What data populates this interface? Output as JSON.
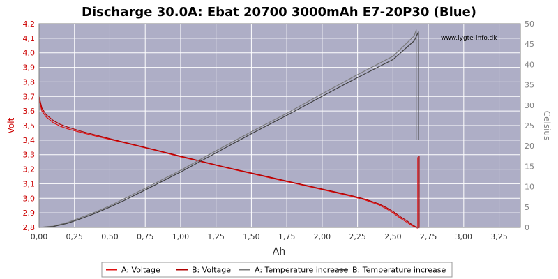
{
  "chart_data": {
    "type": "line",
    "title": "Discharge 30.0A: Ebat 20700 3000mAh E7-20P30 (Blue)",
    "watermark": "www.lygte-info.dk",
    "xlabel": "Ah",
    "ylabel_left": "Volt",
    "ylabel_right": "Celsius",
    "xlim": [
      0,
      3.4
    ],
    "ylim_left": [
      2.8,
      4.2
    ],
    "ylim_right": [
      0,
      50
    ],
    "xticks": [
      "0,00",
      "0,25",
      "0,50",
      "0,75",
      "1,00",
      "1,25",
      "1,50",
      "1,75",
      "2,00",
      "2,25",
      "2,50",
      "2,75",
      "3,00",
      "3,25"
    ],
    "yticks_left": [
      "2,8",
      "2,9",
      "3,0",
      "3,1",
      "3,2",
      "3,3",
      "3,4",
      "3,5",
      "3,6",
      "3,7",
      "3,8",
      "3,9",
      "4,0",
      "4,1",
      "4,2"
    ],
    "yticks_right": [
      "0",
      "5",
      "10",
      "15",
      "20",
      "25",
      "30",
      "35",
      "40",
      "45",
      "50"
    ],
    "grid": true,
    "legend_position": "bottom",
    "colors": {
      "plot_bg": "#aeaec6",
      "grid": "#ffffff",
      "voltage": "#e01010",
      "temperature": "#5a5a5a",
      "left_axis_text": "#cc0000",
      "right_axis_text": "#808080"
    },
    "series": [
      {
        "name": "A: Voltage",
        "axis": "left",
        "color": "#e01010",
        "x": [
          0.0,
          0.02,
          0.05,
          0.1,
          0.15,
          0.2,
          0.25,
          0.3,
          0.4,
          0.5,
          0.6,
          0.7,
          0.8,
          0.9,
          1.0,
          1.1,
          1.2,
          1.3,
          1.4,
          1.5,
          1.6,
          1.7,
          1.8,
          1.9,
          2.0,
          2.1,
          2.2,
          2.3,
          2.4,
          2.45,
          2.5,
          2.55,
          2.6,
          2.63,
          2.66,
          2.675,
          2.675,
          2.675
        ],
        "values": [
          3.68,
          3.6,
          3.56,
          3.52,
          3.495,
          3.478,
          3.465,
          3.452,
          3.428,
          3.405,
          3.382,
          3.358,
          3.335,
          3.31,
          3.285,
          3.262,
          3.238,
          3.215,
          3.192,
          3.17,
          3.148,
          3.125,
          3.104,
          3.082,
          3.06,
          3.038,
          3.015,
          2.99,
          2.955,
          2.93,
          2.9,
          2.865,
          2.835,
          2.815,
          2.8,
          2.795,
          3.28,
          2.8
        ]
      },
      {
        "name": "B: Voltage",
        "axis": "left",
        "color": "#b00000",
        "x": [
          0.0,
          0.02,
          0.05,
          0.1,
          0.15,
          0.2,
          0.25,
          0.3,
          0.4,
          0.5,
          0.6,
          0.7,
          0.8,
          0.9,
          1.0,
          1.1,
          1.2,
          1.3,
          1.4,
          1.5,
          1.6,
          1.7,
          1.8,
          1.9,
          2.0,
          2.1,
          2.2,
          2.3,
          2.4,
          2.45,
          2.5,
          2.55,
          2.6,
          2.63,
          2.66,
          2.685,
          2.685,
          2.685
        ],
        "values": [
          3.7,
          3.62,
          3.575,
          3.535,
          3.508,
          3.49,
          3.475,
          3.46,
          3.435,
          3.41,
          3.386,
          3.362,
          3.338,
          3.314,
          3.29,
          3.266,
          3.242,
          3.218,
          3.196,
          3.174,
          3.152,
          3.13,
          3.108,
          3.086,
          3.064,
          3.042,
          3.02,
          2.995,
          2.962,
          2.938,
          2.91,
          2.875,
          2.845,
          2.822,
          2.805,
          2.797,
          3.29,
          2.8
        ]
      },
      {
        "name": "A: Temperature increase",
        "axis": "right",
        "color": "#7a7a7a",
        "x": [
          0.0,
          0.1,
          0.2,
          0.3,
          0.4,
          0.5,
          0.6,
          0.75,
          1.0,
          1.25,
          1.5,
          1.75,
          2.0,
          2.25,
          2.5,
          2.65,
          2.665,
          2.665
        ],
        "values": [
          0.0,
          0.3,
          1.2,
          2.5,
          3.8,
          5.3,
          7.0,
          9.6,
          14.0,
          18.8,
          23.5,
          28.0,
          32.8,
          37.5,
          42.0,
          47.0,
          48.5,
          21.5
        ]
      },
      {
        "name": "B: Temperature increase",
        "axis": "right",
        "color": "#3f3f3f",
        "x": [
          0.0,
          0.1,
          0.2,
          0.3,
          0.4,
          0.5,
          0.6,
          0.75,
          1.0,
          1.25,
          1.5,
          1.75,
          2.0,
          2.25,
          2.5,
          2.65,
          2.68,
          2.68
        ],
        "values": [
          0.0,
          0.2,
          1.0,
          2.2,
          3.5,
          5.0,
          6.6,
          9.2,
          13.6,
          18.3,
          23.0,
          27.5,
          32.2,
          36.8,
          41.2,
          45.8,
          48.0,
          21.5
        ]
      }
    ]
  }
}
